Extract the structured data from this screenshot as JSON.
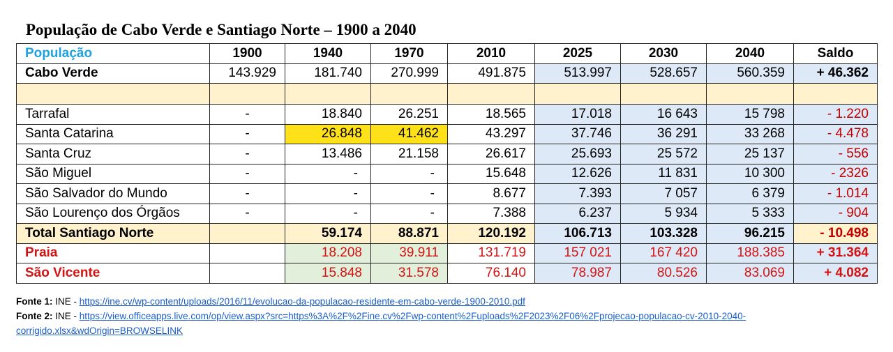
{
  "title": "População de Cabo Verde e Santiago Norte – 1900 a 2040",
  "table": {
    "header": [
      "População",
      "1900",
      "1940",
      "1970",
      "2010",
      "2025",
      "2030",
      "2040",
      "Saldo"
    ],
    "cabo_verde": [
      "Cabo Verde",
      "143.929",
      "181.740",
      "270.999",
      "491.875",
      "513.997",
      "528.657",
      "560.359",
      "+ 46.362"
    ],
    "municipalities": [
      [
        "Tarrafal",
        "-",
        "18.840",
        "26.251",
        "18.565",
        "17.018",
        "16 643",
        "15 798",
        "- 1.220"
      ],
      [
        "Santa Catarina",
        "-",
        "26.848",
        "41.462",
        "43.297",
        "37.746",
        "36 291",
        "33 268",
        "- 4.478"
      ],
      [
        "Santa Cruz",
        "-",
        "13.486",
        "21.158",
        "26.617",
        "25.693",
        "25 572",
        "25 137",
        "- 556"
      ],
      [
        "São Miguel",
        "-",
        "-",
        "-",
        "15.648",
        "12.626",
        "11 831",
        "10 300",
        "- 2326"
      ],
      [
        "São Salvador do Mundo",
        "-",
        "-",
        "-",
        "8.677",
        "7.393",
        "7 057",
        "6 379",
        "- 1.014"
      ],
      [
        "São Lourenço dos Órgãos",
        "-",
        "-",
        "-",
        "7.388",
        "6.237",
        "5 934",
        "5 333",
        "- 904"
      ]
    ],
    "total": [
      "Total Santiago Norte",
      "",
      "59.174",
      "88.871",
      "120.192",
      "106.713",
      "103.328",
      "96.215",
      "- 10.498"
    ],
    "praia": [
      "Praia",
      "",
      "18.208",
      "39.911",
      "131.719",
      "157 021",
      "167 420",
      "188.385",
      "+ 31.364"
    ],
    "sao_vicente": [
      "São Vicente",
      "",
      "15.848",
      "31.578",
      "76.140",
      "78.987",
      "80.526",
      "83.069",
      "+ 4.082"
    ]
  },
  "sources": {
    "fonte1_label": "Fonte 1:",
    "fonte1_org": " INE - ",
    "fonte1_url": "https://ine.cv/wp-content/uploads/2016/11/evolucao-da-populacao-residente-em-cabo-verde-1900-2010.pdf",
    "fonte2_label": "Fonte 2:",
    "fonte2_org": " INE - ",
    "fonte2_url": "https://view.officeapps.live.com/op/view.aspx?src=https%3A%2F%2Fine.cv%2Fwp-content%2Fuploads%2F2023%2F06%2Fprojecao-populacao-cv-2010-2040-corrigido.xlsx&wdOrigin=BROWSELINK"
  },
  "colors": {
    "header_label": "#1fa2e0",
    "projection_bg": "#dde9f7",
    "cream_bg": "#fff2cc",
    "highlight_yellow": "#ffe11a",
    "highlight_green": "#e2efda",
    "negative_red": "#c00000",
    "link_blue": "#1a5ec9"
  }
}
